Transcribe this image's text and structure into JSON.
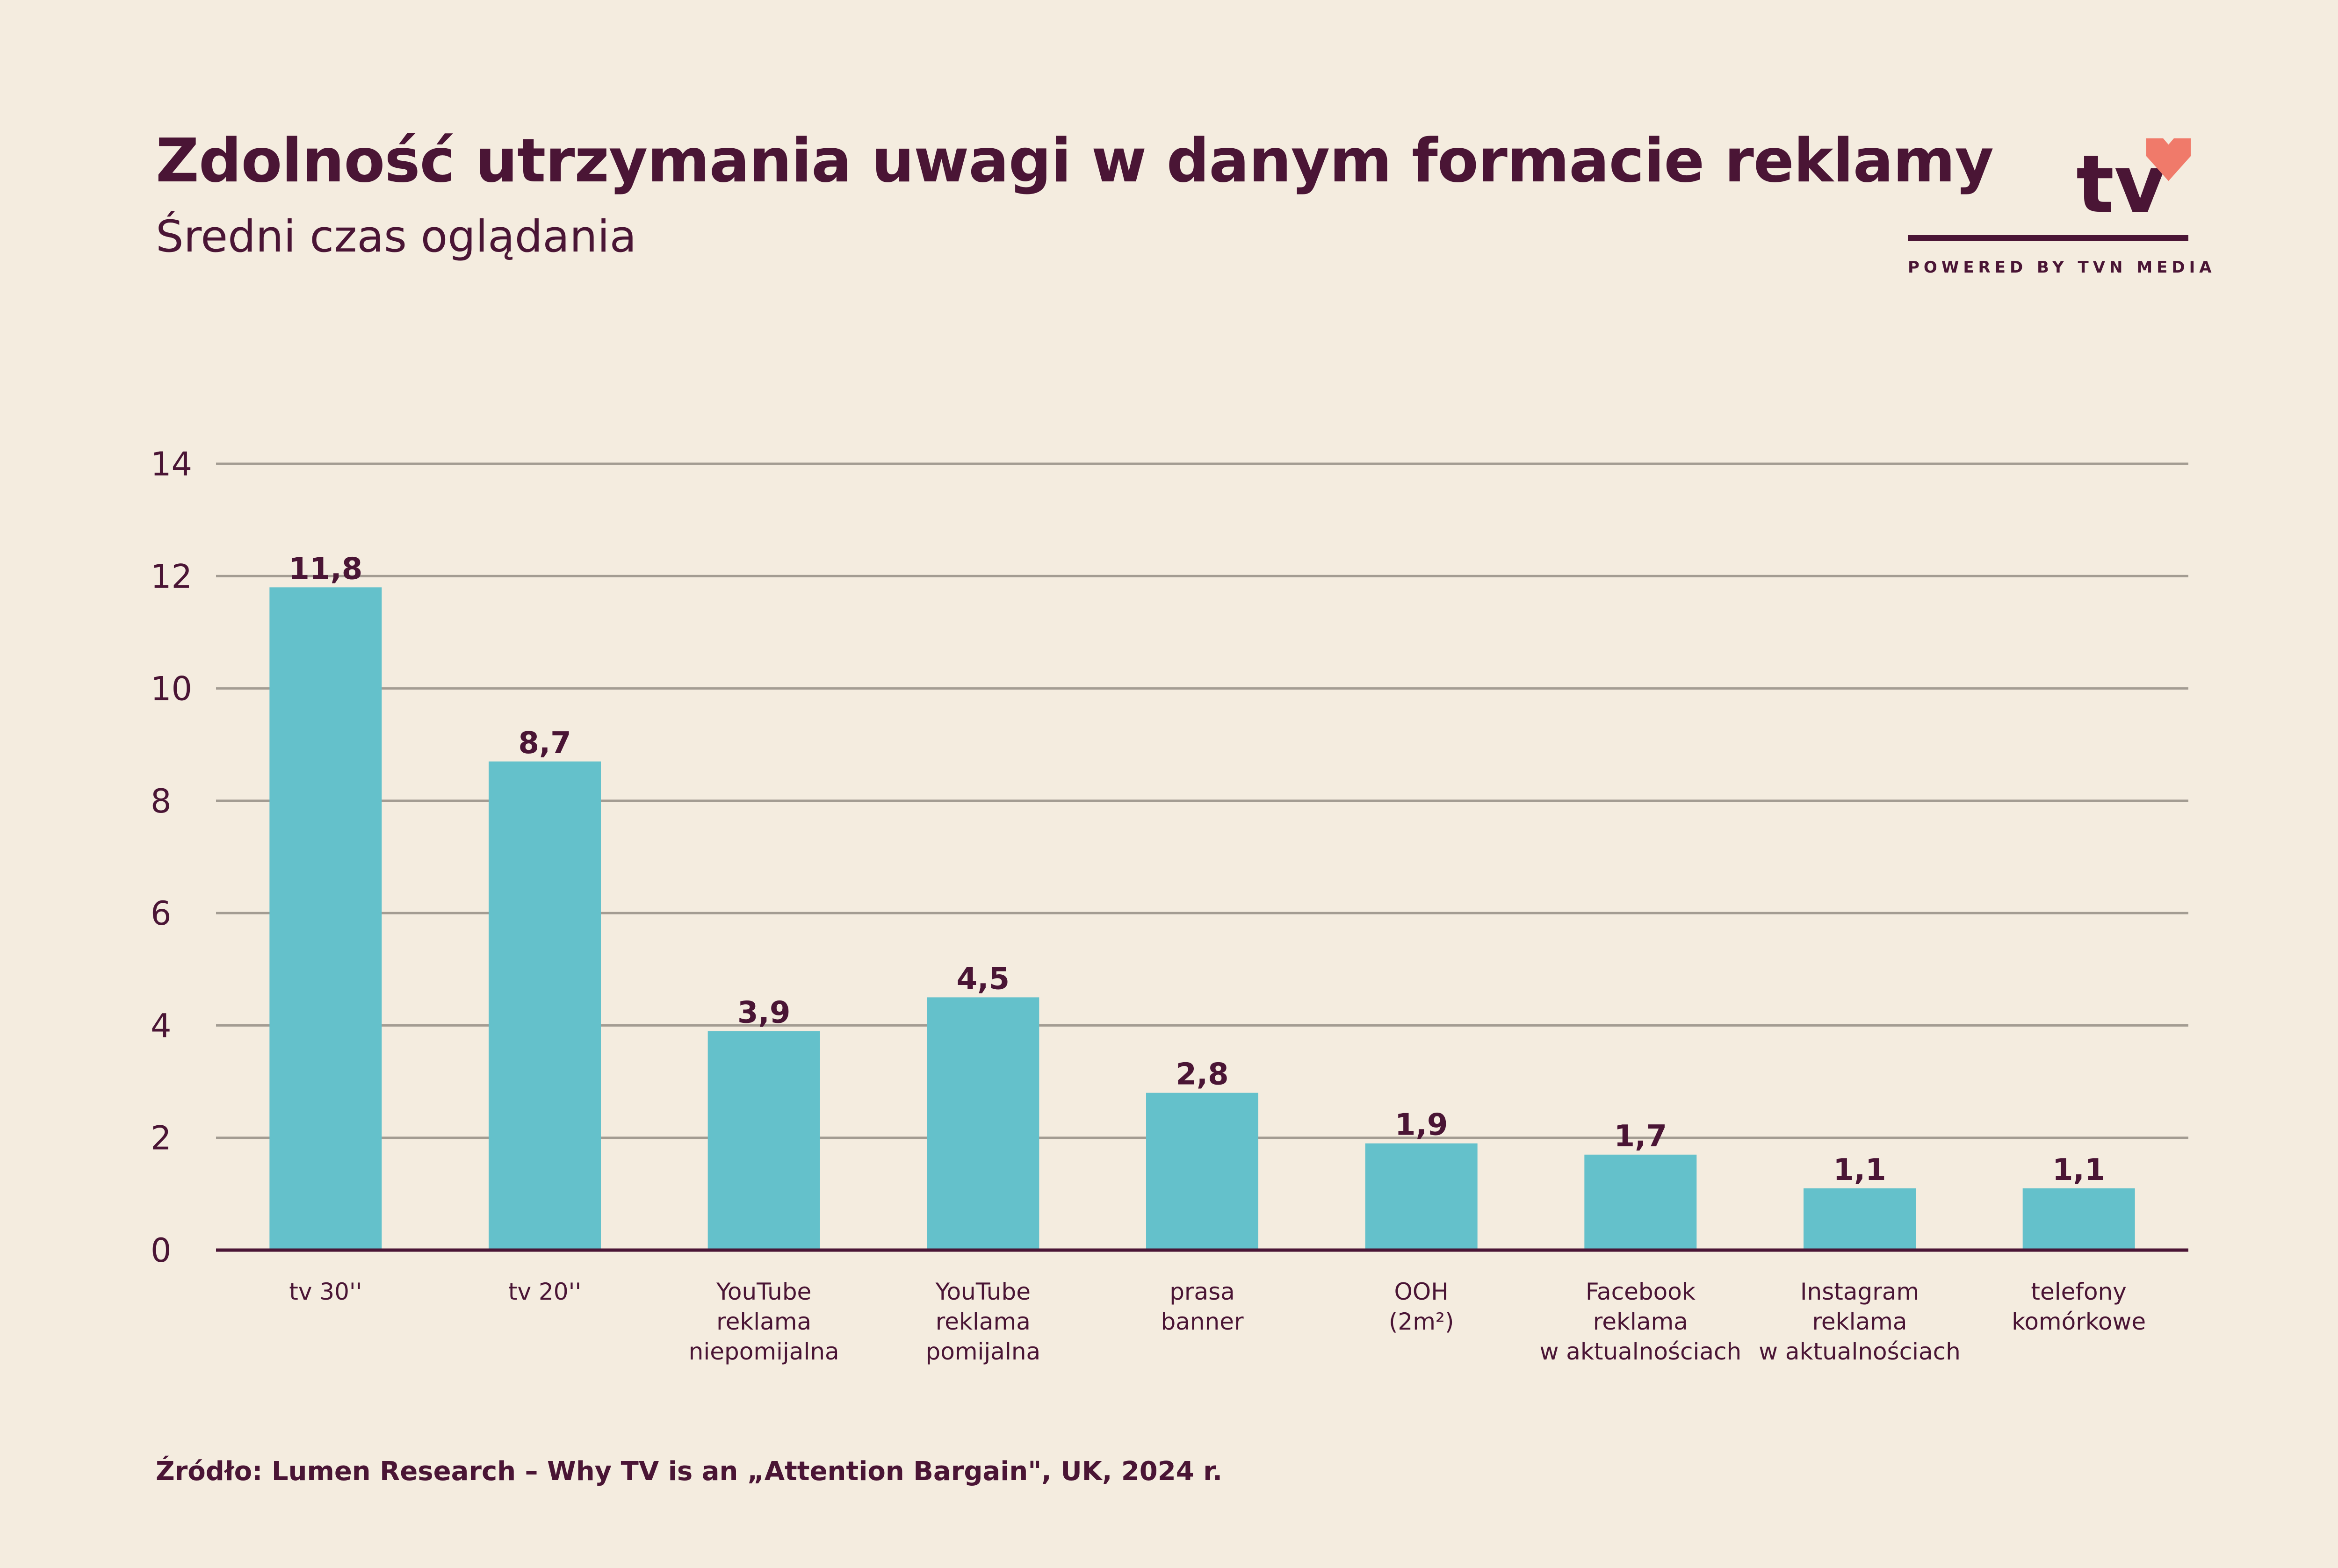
{
  "header": {
    "title": "Zdolność utrzymania uwagi w danym formacie reklamy",
    "subtitle": "Średni czas oglądania"
  },
  "logo": {
    "word": "tv",
    "powered_by": "POWERED BY TVN MEDIA",
    "heart_color": "#f07a6a"
  },
  "footer": {
    "source": "Źródło: Lumen Research – Why TV is an „Attention Bargain\", UK, 2024 r."
  },
  "colors": {
    "background": "#f4ecdf",
    "bar": "#64c1cb",
    "text": "#4a1535",
    "grid": "#a39c92"
  },
  "chart_data": {
    "type": "bar",
    "title": "Zdolność utrzymania uwagi w danym formacie reklamy",
    "subtitle": "Średni czas oglądania",
    "xlabel": "",
    "ylabel": "",
    "ylim": [
      0,
      14
    ],
    "yticks": [
      "0",
      "2",
      "4",
      "6",
      "8",
      "10",
      "12",
      "14"
    ],
    "grid": true,
    "categories": [
      [
        "tv 30''"
      ],
      [
        "tv 20''"
      ],
      [
        "YouTube",
        "reklama",
        "niepomijalna"
      ],
      [
        "YouTube",
        "reklama",
        "pomijalna"
      ],
      [
        "prasa",
        "banner"
      ],
      [
        "OOH",
        "(2m²)"
      ],
      [
        "Facebook",
        "reklama",
        "w aktualnościach"
      ],
      [
        "Instagram",
        "reklama",
        "w aktualnościach"
      ],
      [
        "telefony",
        "komórkowe"
      ]
    ],
    "values": [
      11.8,
      8.7,
      3.9,
      4.5,
      2.8,
      1.9,
      1.7,
      1.1,
      1.1
    ],
    "value_labels": [
      "11,8",
      "8,7",
      "3,9",
      "4,5",
      "2,8",
      "1,9",
      "1,7",
      "1,1",
      "1,1"
    ]
  }
}
